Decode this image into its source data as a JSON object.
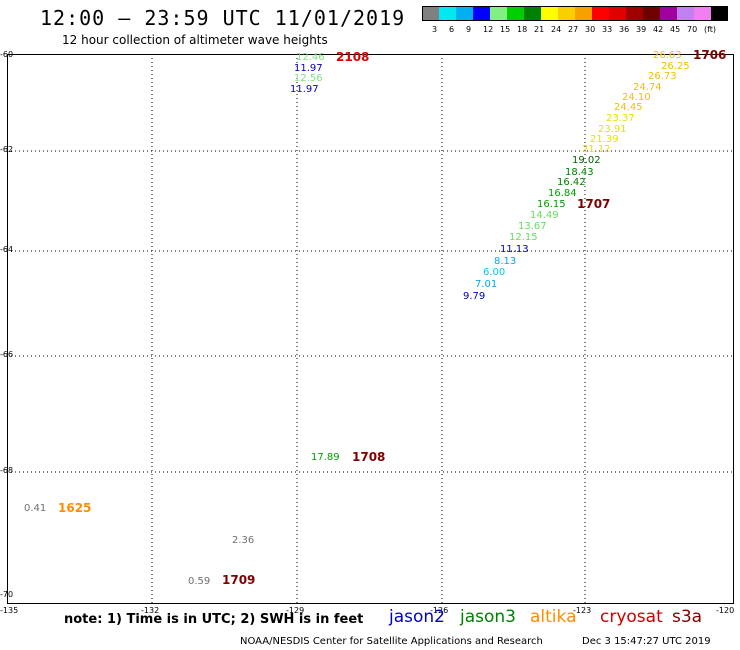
{
  "title": "12:00 – 23:59 UTC 11/01/2019",
  "subtitle": "12 hour collection of altimeter wave heights",
  "legend": {
    "unit": "(ft)",
    "colors": [
      "#808080",
      "#00e8f0",
      "#00b0f0",
      "#0000ff",
      "#80f080",
      "#00d000",
      "#008000",
      "#ffff00",
      "#f8d000",
      "#f8a000",
      "#ff0000",
      "#e00000",
      "#a00000",
      "#700000",
      "#a000a0",
      "#c080f0",
      "#f080f0",
      "#000000"
    ],
    "labels": [
      "3",
      "6",
      "9",
      "12",
      "15",
      "18",
      "21",
      "24",
      "27",
      "30",
      "33",
      "36",
      "39",
      "42",
      "45",
      "70"
    ]
  },
  "axes": {
    "lat_labels": [
      "-60",
      "-62",
      "-64",
      "-66",
      "-68",
      "-70"
    ],
    "lon_labels": [
      "-135",
      "-132",
      "-129",
      "-126",
      "-123",
      "-120"
    ]
  },
  "colors": {
    "jason2": "#0000cc",
    "jason3": "#008000",
    "altika": "#ff8c00",
    "cryosat": "#cc0000",
    "s3a": "#800000"
  },
  "track_labels": [
    {
      "text": "2108",
      "color": "#dd0000"
    },
    {
      "text": "1706",
      "color": "#800000"
    },
    {
      "text": "1707",
      "color": "#800000"
    },
    {
      "text": "1708",
      "color": "#800000"
    },
    {
      "text": "1625",
      "color": "#ff8c00"
    },
    {
      "text": "1709",
      "color": "#800000"
    }
  ],
  "wave_heights": [
    {
      "v": "12.46",
      "color": "#80e080"
    },
    {
      "v": "11.97",
      "color": "#0000cc"
    },
    {
      "v": "12.56",
      "color": "#80e080"
    },
    {
      "v": "11.97",
      "color": "#0000cc"
    },
    {
      "v": "26.63",
      "color": "#f0c000"
    },
    {
      "v": "26.25",
      "color": "#f0c000"
    },
    {
      "v": "26.73",
      "color": "#f0c000"
    },
    {
      "v": "24.74",
      "color": "#f0c000"
    },
    {
      "v": "24.10",
      "color": "#f0c000"
    },
    {
      "v": "24.45",
      "color": "#f0c000"
    },
    {
      "v": "23.37",
      "color": "#e8e000"
    },
    {
      "v": "23.91",
      "color": "#e8e000"
    },
    {
      "v": "21.39",
      "color": "#e8e000"
    },
    {
      "v": "21.12",
      "color": "#e8e000"
    },
    {
      "v": "19.02",
      "color": "#006000"
    },
    {
      "v": "18.43",
      "color": "#008000"
    },
    {
      "v": "16.42",
      "color": "#008000"
    },
    {
      "v": "16.84",
      "color": "#00a000"
    },
    {
      "v": "16.15",
      "color": "#00a000"
    },
    {
      "v": "14.49",
      "color": "#60e060"
    },
    {
      "v": "13.67",
      "color": "#60e060"
    },
    {
      "v": "12.15",
      "color": "#60e060"
    },
    {
      "v": "11.13",
      "color": "#0000cc"
    },
    {
      "v": "8.13",
      "color": "#00a8e8"
    },
    {
      "v": "6.00",
      "color": "#00c8e8"
    },
    {
      "v": "7.01",
      "color": "#00a8e8"
    },
    {
      "v": "9.79",
      "color": "#0000cc"
    },
    {
      "v": "17.89",
      "color": "#00a000"
    },
    {
      "v": "0.41",
      "color": "#707070"
    },
    {
      "v": "2.36",
      "color": "#707070"
    },
    {
      "v": "0.59",
      "color": "#707070"
    }
  ],
  "note": "note: 1) Time is in UTC; 2) SWH is in feet",
  "satellites": [
    "jason2",
    "jason3",
    "altika",
    "cryosat",
    "s3a"
  ],
  "credit": "NOAA/NESDIS Center for Satellite Applications and Research",
  "timestamp": "Dec  3 15:47:27 UTC 2019"
}
